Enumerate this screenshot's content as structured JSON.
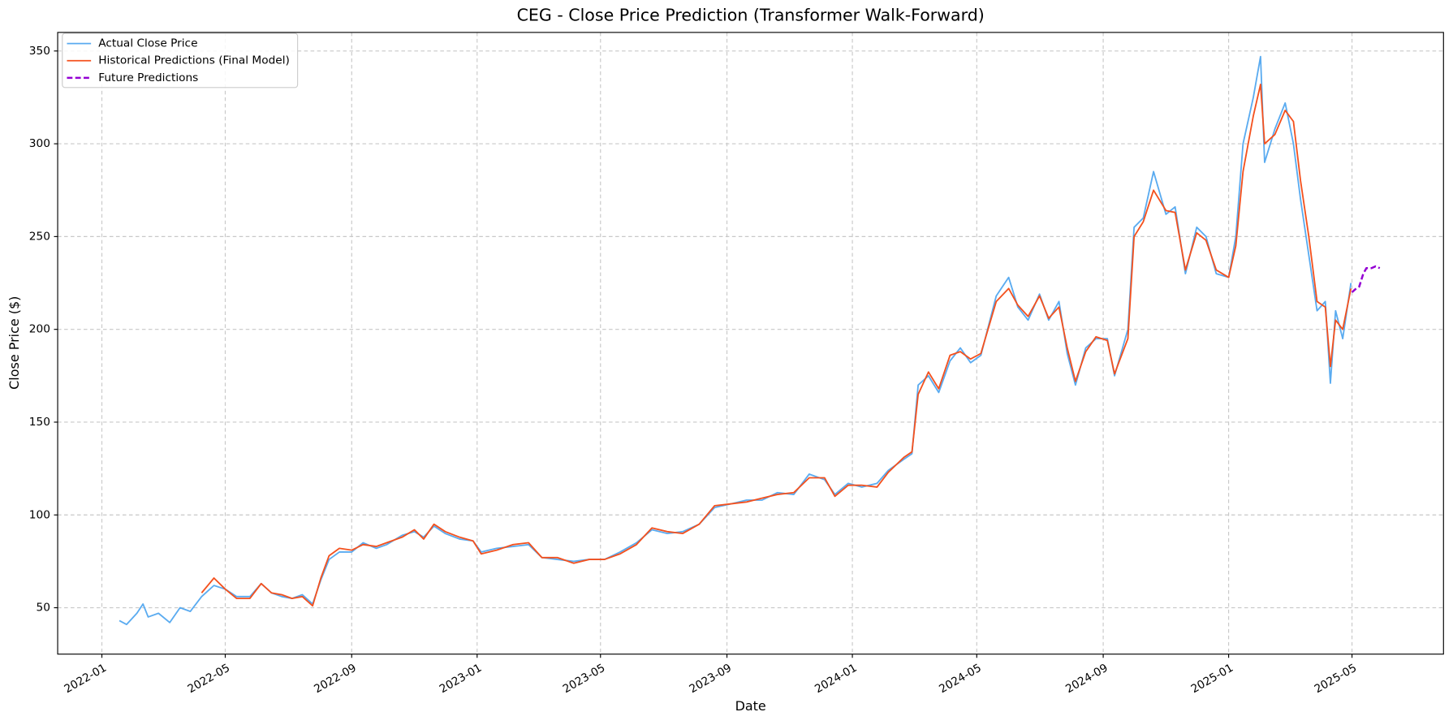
{
  "chart_data": {
    "type": "line",
    "title": "CEG - Close Price Prediction (Transformer Walk-Forward)",
    "xlabel": "Date",
    "ylabel": "Close Price ($)",
    "xlim": [
      "2021-11-19",
      "2025-07-29"
    ],
    "ylim": [
      25,
      360
    ],
    "xticks": [
      {
        "value": "2022-01-01",
        "label": "2022-01"
      },
      {
        "value": "2022-05-01",
        "label": "2022-05"
      },
      {
        "value": "2022-09-01",
        "label": "2022-09"
      },
      {
        "value": "2023-01-01",
        "label": "2023-01"
      },
      {
        "value": "2023-05-01",
        "label": "2023-05"
      },
      {
        "value": "2023-09-01",
        "label": "2023-09"
      },
      {
        "value": "2024-01-01",
        "label": "2024-01"
      },
      {
        "value": "2024-05-01",
        "label": "2024-05"
      },
      {
        "value": "2024-09-01",
        "label": "2024-09"
      },
      {
        "value": "2025-01-01",
        "label": "2025-01"
      },
      {
        "value": "2025-05-01",
        "label": "2025-05"
      }
    ],
    "yticks": [
      50,
      100,
      150,
      200,
      250,
      300,
      350
    ],
    "grid": true,
    "legend": "upper left",
    "series": [
      {
        "name": "Actual Close Price",
        "color": "#5aabf0",
        "linestyle": "solid",
        "x": [
          "2022-01-18",
          "2022-01-25",
          "2022-02-04",
          "2022-02-10",
          "2022-02-15",
          "2022-02-25",
          "2022-03-08",
          "2022-03-18",
          "2022-03-28",
          "2022-04-08",
          "2022-04-20",
          "2022-05-01",
          "2022-05-12",
          "2022-05-25",
          "2022-06-05",
          "2022-06-15",
          "2022-06-25",
          "2022-07-05",
          "2022-07-15",
          "2022-07-25",
          "2022-08-02",
          "2022-08-10",
          "2022-08-20",
          "2022-09-01",
          "2022-09-12",
          "2022-09-25",
          "2022-10-05",
          "2022-10-20",
          "2022-11-01",
          "2022-11-10",
          "2022-11-20",
          "2022-12-01",
          "2022-12-15",
          "2022-12-28",
          "2023-01-05",
          "2023-01-20",
          "2023-02-05",
          "2023-02-20",
          "2023-03-05",
          "2023-03-20",
          "2023-04-05",
          "2023-04-20",
          "2023-05-05",
          "2023-05-20",
          "2023-06-05",
          "2023-06-20",
          "2023-07-05",
          "2023-07-20",
          "2023-08-05",
          "2023-08-20",
          "2023-09-05",
          "2023-09-20",
          "2023-10-05",
          "2023-10-20",
          "2023-11-05",
          "2023-11-20",
          "2023-12-05",
          "2023-12-15",
          "2023-12-28",
          "2024-01-10",
          "2024-01-25",
          "2024-02-05",
          "2024-02-20",
          "2024-02-28",
          "2024-03-05",
          "2024-03-15",
          "2024-03-25",
          "2024-04-05",
          "2024-04-15",
          "2024-04-25",
          "2024-05-05",
          "2024-05-20",
          "2024-06-01",
          "2024-06-10",
          "2024-06-20",
          "2024-07-01",
          "2024-07-10",
          "2024-07-20",
          "2024-07-28",
          "2024-08-05",
          "2024-08-15",
          "2024-08-25",
          "2024-09-05",
          "2024-09-12",
          "2024-09-25",
          "2024-10-01",
          "2024-10-10",
          "2024-10-20",
          "2024-11-01",
          "2024-11-10",
          "2024-11-20",
          "2024-12-01",
          "2024-12-10",
          "2024-12-20",
          "2025-01-01",
          "2025-01-08",
          "2025-01-15",
          "2025-01-25",
          "2025-02-01",
          "2025-02-05",
          "2025-02-15",
          "2025-02-25",
          "2025-03-05",
          "2025-03-12",
          "2025-03-20",
          "2025-03-28",
          "2025-04-05",
          "2025-04-10",
          "2025-04-15",
          "2025-04-22",
          "2025-04-30"
        ],
        "values": [
          43,
          41,
          47,
          52,
          45,
          47,
          42,
          50,
          48,
          56,
          62,
          60,
          56,
          56,
          63,
          58,
          56,
          55,
          57,
          52,
          65,
          76,
          80,
          80,
          85,
          82,
          84,
          89,
          91,
          88,
          94,
          90,
          87,
          86,
          80,
          82,
          83,
          84,
          77,
          76,
          75,
          76,
          76,
          80,
          85,
          92,
          90,
          91,
          95,
          104,
          106,
          108,
          108,
          112,
          111,
          122,
          119,
          111,
          117,
          115,
          117,
          124,
          130,
          133,
          170,
          175,
          166,
          183,
          190,
          182,
          186,
          218,
          228,
          212,
          205,
          219,
          205,
          215,
          187,
          170,
          190,
          195,
          195,
          175,
          200,
          255,
          260,
          285,
          262,
          266,
          230,
          255,
          250,
          230,
          228,
          250,
          300,
          325,
          347,
          290,
          308,
          322,
          300,
          270,
          240,
          210,
          215,
          171,
          210,
          195,
          225
        ]
      },
      {
        "name": "Historical Predictions (Final Model)",
        "color": "#f4511e",
        "linestyle": "solid",
        "x": [
          "2022-04-08",
          "2022-04-20",
          "2022-05-01",
          "2022-05-12",
          "2022-05-25",
          "2022-06-05",
          "2022-06-15",
          "2022-06-25",
          "2022-07-05",
          "2022-07-15",
          "2022-07-25",
          "2022-08-02",
          "2022-08-10",
          "2022-08-20",
          "2022-09-01",
          "2022-09-12",
          "2022-09-25",
          "2022-10-05",
          "2022-10-20",
          "2022-11-01",
          "2022-11-10",
          "2022-11-20",
          "2022-12-01",
          "2022-12-15",
          "2022-12-28",
          "2023-01-05",
          "2023-01-20",
          "2023-02-05",
          "2023-02-20",
          "2023-03-05",
          "2023-03-20",
          "2023-04-05",
          "2023-04-20",
          "2023-05-05",
          "2023-05-20",
          "2023-06-05",
          "2023-06-20",
          "2023-07-05",
          "2023-07-20",
          "2023-08-05",
          "2023-08-20",
          "2023-09-05",
          "2023-09-20",
          "2023-10-05",
          "2023-10-20",
          "2023-11-05",
          "2023-11-20",
          "2023-12-05",
          "2023-12-15",
          "2023-12-28",
          "2024-01-10",
          "2024-01-25",
          "2024-02-05",
          "2024-02-20",
          "2024-02-28",
          "2024-03-05",
          "2024-03-15",
          "2024-03-25",
          "2024-04-05",
          "2024-04-15",
          "2024-04-25",
          "2024-05-05",
          "2024-05-20",
          "2024-06-01",
          "2024-06-10",
          "2024-06-20",
          "2024-07-01",
          "2024-07-10",
          "2024-07-20",
          "2024-07-28",
          "2024-08-05",
          "2024-08-15",
          "2024-08-25",
          "2024-09-05",
          "2024-09-12",
          "2024-09-25",
          "2024-10-01",
          "2024-10-10",
          "2024-10-20",
          "2024-11-01",
          "2024-11-10",
          "2024-11-20",
          "2024-12-01",
          "2024-12-10",
          "2024-12-20",
          "2025-01-01",
          "2025-01-08",
          "2025-01-15",
          "2025-01-25",
          "2025-02-01",
          "2025-02-05",
          "2025-02-15",
          "2025-02-25",
          "2025-03-05",
          "2025-03-12",
          "2025-03-20",
          "2025-03-28",
          "2025-04-05",
          "2025-04-10",
          "2025-04-15",
          "2025-04-22",
          "2025-04-30"
        ],
        "values": [
          58,
          66,
          60,
          55,
          55,
          63,
          58,
          57,
          55,
          56,
          51,
          66,
          78,
          82,
          81,
          84,
          83,
          85,
          88,
          92,
          87,
          95,
          91,
          88,
          86,
          79,
          81,
          84,
          85,
          77,
          77,
          74,
          76,
          76,
          79,
          84,
          93,
          91,
          90,
          95,
          105,
          106,
          107,
          109,
          111,
          112,
          120,
          120,
          110,
          116,
          116,
          115,
          123,
          131,
          134,
          165,
          177,
          168,
          186,
          188,
          184,
          187,
          215,
          222,
          213,
          207,
          218,
          206,
          212,
          190,
          172,
          188,
          196,
          194,
          176,
          195,
          250,
          258,
          275,
          264,
          263,
          232,
          252,
          248,
          232,
          228,
          245,
          285,
          315,
          332,
          300,
          305,
          318,
          312,
          280,
          250,
          215,
          212,
          180,
          205,
          200,
          222
        ]
      },
      {
        "name": "Future Predictions",
        "color": "#9400d3",
        "linestyle": "dashed",
        "x": [
          "2025-05-01",
          "2025-05-05",
          "2025-05-08",
          "2025-05-12",
          "2025-05-15",
          "2025-05-20",
          "2025-05-24",
          "2025-05-28"
        ],
        "values": [
          220,
          222,
          223,
          230,
          233,
          233,
          234,
          233
        ]
      }
    ]
  }
}
